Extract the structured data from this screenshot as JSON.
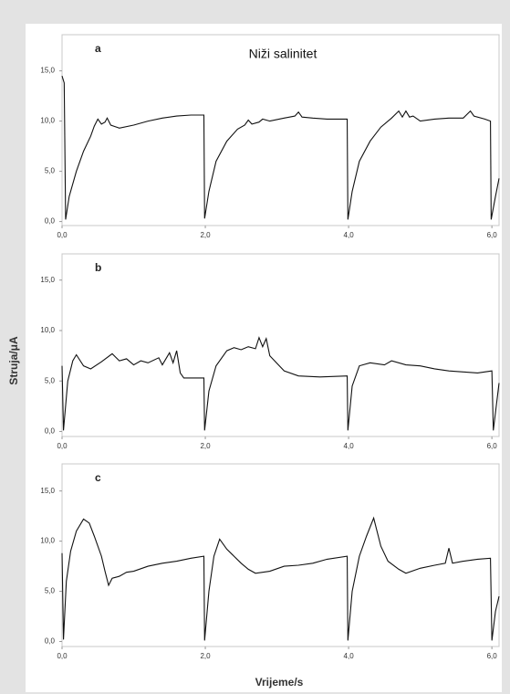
{
  "chart_data": [
    {
      "type": "line",
      "label": "a",
      "title": "Niži salinitet",
      "color": "#111111",
      "x": [
        0,
        0.03,
        0.05,
        0.1,
        0.2,
        0.3,
        0.4,
        0.45,
        0.5,
        0.55,
        0.6,
        0.63,
        0.68,
        0.8,
        1.0,
        1.2,
        1.4,
        1.6,
        1.8,
        1.98,
        1.99,
        2.05,
        2.15,
        2.3,
        2.45,
        2.55,
        2.6,
        2.65,
        2.75,
        2.8,
        2.9,
        3.1,
        3.25,
        3.3,
        3.35,
        3.5,
        3.7,
        3.98,
        3.99,
        4.05,
        4.15,
        4.3,
        4.45,
        4.6,
        4.7,
        4.75,
        4.8,
        4.85,
        4.9,
        5.0,
        5.2,
        5.4,
        5.6,
        5.7,
        5.75,
        5.9,
        5.98,
        5.99,
        6.05,
        6.1
      ],
      "values": [
        14.5,
        13.8,
        0.2,
        2.5,
        5,
        7,
        8.5,
        9.5,
        10.2,
        9.7,
        9.9,
        10.3,
        9.6,
        9.3,
        9.6,
        10.0,
        10.3,
        10.5,
        10.6,
        10.6,
        0.3,
        3,
        6,
        8,
        9.2,
        9.6,
        10.1,
        9.7,
        9.9,
        10.2,
        10.0,
        10.3,
        10.5,
        10.9,
        10.4,
        10.3,
        10.2,
        10.2,
        0.2,
        3,
        6,
        8,
        9.4,
        10.3,
        11,
        10.4,
        11,
        10.4,
        10.5,
        10.0,
        10.2,
        10.3,
        10.3,
        11.0,
        10.5,
        10.2,
        10.0,
        0.2,
        2.5,
        4.3
      ],
      "xlim": [
        0,
        6.1
      ],
      "ylim": [
        -0.4,
        18.6
      ],
      "xticks": [
        {
          "value": 0,
          "label": "0,0"
        },
        {
          "value": 2,
          "label": "2,0"
        },
        {
          "value": 4,
          "label": "4,0"
        },
        {
          "value": 6,
          "label": "6,0"
        }
      ],
      "yticks": [
        {
          "value": 0,
          "label": "0,0"
        },
        {
          "value": 5,
          "label": "5,0"
        },
        {
          "value": 10,
          "label": "10,0"
        },
        {
          "value": 15,
          "label": "15,0"
        }
      ]
    },
    {
      "type": "line",
      "label": "b",
      "ylabel": "Struja/μA",
      "color": "#111111",
      "x": [
        0,
        0.02,
        0.08,
        0.15,
        0.2,
        0.3,
        0.4,
        0.55,
        0.7,
        0.8,
        0.9,
        1.0,
        1.1,
        1.2,
        1.35,
        1.4,
        1.5,
        1.55,
        1.6,
        1.65,
        1.7,
        1.98,
        1.99,
        2.05,
        2.15,
        2.3,
        2.4,
        2.5,
        2.6,
        2.7,
        2.75,
        2.8,
        2.85,
        2.9,
        3.1,
        3.3,
        3.6,
        3.98,
        3.99,
        4.05,
        4.15,
        4.3,
        4.5,
        4.6,
        4.8,
        5.0,
        5.2,
        5.4,
        5.6,
        5.8,
        6.0,
        6.02,
        6.1
      ],
      "values": [
        6.5,
        0.1,
        5,
        7,
        7.6,
        6.5,
        6.2,
        6.9,
        7.7,
        7.0,
        7.2,
        6.6,
        7.0,
        6.8,
        7.3,
        6.6,
        7.8,
        6.8,
        8.0,
        5.8,
        5.3,
        5.3,
        0.1,
        4,
        6.5,
        8.0,
        8.3,
        8.1,
        8.4,
        8.2,
        9.3,
        8.4,
        9.2,
        7.5,
        6.0,
        5.5,
        5.4,
        5.5,
        0.1,
        4.5,
        6.5,
        6.8,
        6.6,
        7.0,
        6.6,
        6.5,
        6.2,
        6.0,
        5.9,
        5.8,
        6.0,
        0.1,
        4.8
      ],
      "xlim": [
        0,
        6.1
      ],
      "ylim": [
        -0.5,
        17.6
      ],
      "xticks": [
        {
          "value": 0,
          "label": "0,0"
        },
        {
          "value": 2,
          "label": "2,0"
        },
        {
          "value": 4,
          "label": "4,0"
        },
        {
          "value": 6,
          "label": "6,0"
        }
      ],
      "yticks": [
        {
          "value": 0,
          "label": "0,0"
        },
        {
          "value": 5,
          "label": "5,0"
        },
        {
          "value": 10,
          "label": "10,0"
        },
        {
          "value": 15,
          "label": "15,0"
        }
      ]
    },
    {
      "type": "line",
      "label": "c",
      "xlabel": "Vrijeme/s",
      "color": "#111111",
      "x": [
        0,
        0.02,
        0.06,
        0.12,
        0.2,
        0.3,
        0.38,
        0.45,
        0.55,
        0.6,
        0.65,
        0.7,
        0.8,
        0.9,
        1.0,
        1.2,
        1.4,
        1.6,
        1.8,
        1.98,
        1.99,
        2.05,
        2.12,
        2.2,
        2.3,
        2.4,
        2.5,
        2.6,
        2.7,
        2.9,
        3.1,
        3.3,
        3.5,
        3.7,
        3.98,
        3.99,
        4.05,
        4.15,
        4.25,
        4.35,
        4.45,
        4.55,
        4.7,
        4.8,
        5.0,
        5.2,
        5.35,
        5.4,
        5.45,
        5.6,
        5.8,
        5.98,
        6.0,
        6.05,
        6.1
      ],
      "values": [
        8.8,
        0.2,
        6,
        9,
        11,
        12.2,
        11.8,
        10.5,
        8.5,
        7.0,
        5.6,
        6.3,
        6.5,
        6.9,
        7.0,
        7.5,
        7.8,
        8.0,
        8.3,
        8.5,
        0.1,
        5,
        8.5,
        10.2,
        9.2,
        8.5,
        7.8,
        7.2,
        6.8,
        7.0,
        7.5,
        7.6,
        7.8,
        8.2,
        8.5,
        0.1,
        5,
        8.5,
        10.5,
        12.3,
        9.5,
        8.0,
        7.2,
        6.8,
        7.3,
        7.6,
        7.8,
        9.3,
        7.8,
        8.0,
        8.2,
        8.3,
        0.1,
        3,
        4.5
      ],
      "xlim": [
        0,
        6.1
      ],
      "ylim": [
        -0.5,
        17.7
      ],
      "xticks": [
        {
          "value": 0,
          "label": "0,0"
        },
        {
          "value": 2,
          "label": "2,0"
        },
        {
          "value": 4,
          "label": "4,0"
        },
        {
          "value": 6,
          "label": "6,0"
        }
      ],
      "yticks": [
        {
          "value": 0,
          "label": "0,0"
        },
        {
          "value": 5,
          "label": "5,0"
        },
        {
          "value": 10,
          "label": "10,0"
        },
        {
          "value": 15,
          "label": "15,0"
        }
      ]
    }
  ]
}
